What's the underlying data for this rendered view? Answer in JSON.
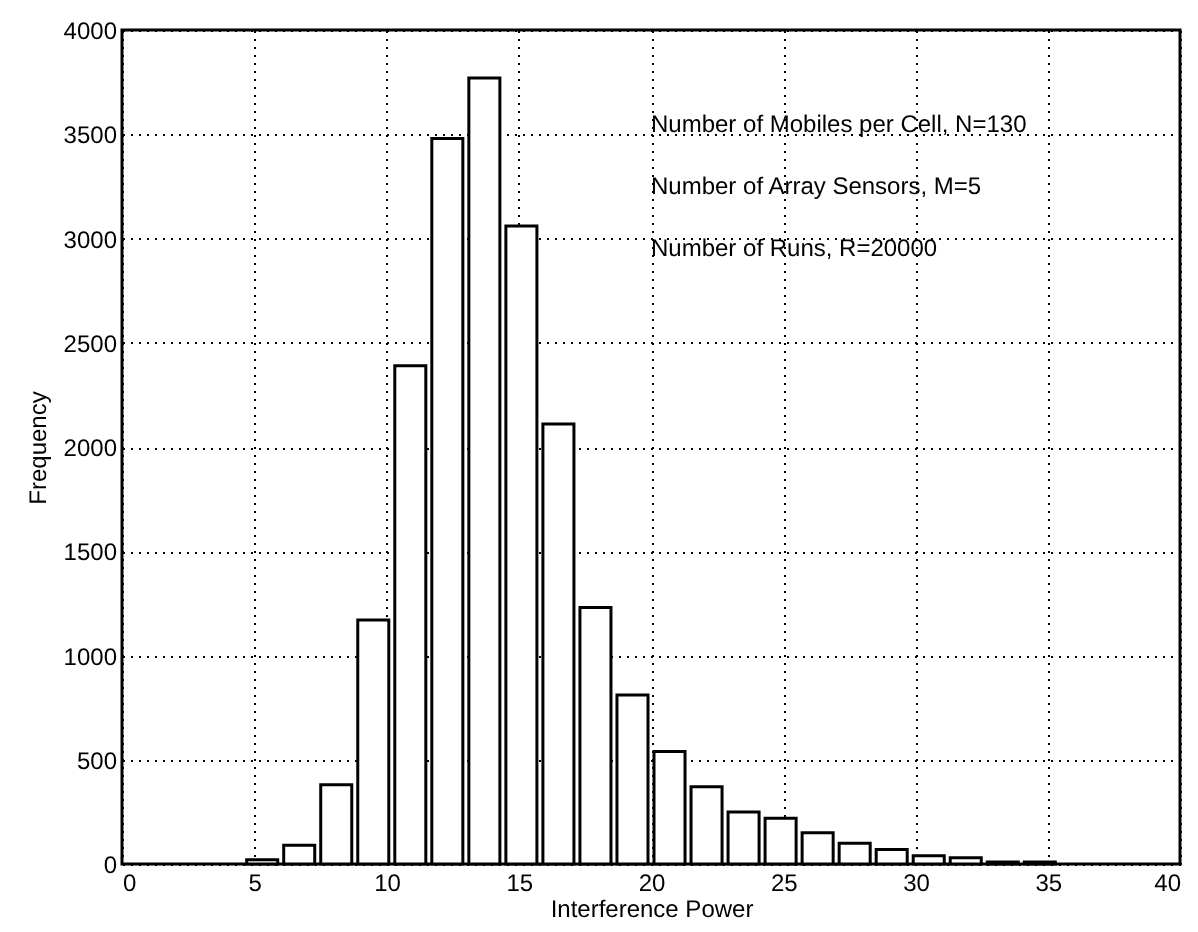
{
  "chart_data": {
    "type": "histogram",
    "bins": [
      4.6,
      6.0,
      7.4,
      8.8,
      10.2,
      11.6,
      13.0,
      14.4,
      15.8,
      17.2,
      18.6,
      20.0,
      21.4,
      22.8,
      24.2,
      25.6,
      27.0,
      28.4,
      29.8,
      31.2,
      32.6,
      34.0,
      35.4
    ],
    "values": [
      20,
      90,
      380,
      1170,
      2390,
      3480,
      3770,
      3060,
      2110,
      1230,
      810,
      540,
      370,
      250,
      220,
      150,
      100,
      70,
      40,
      30,
      10,
      10
    ],
    "color": "#ffffff",
    "xlabel": "Interference Power",
    "ylabel": "Frequency",
    "xlim": [
      0,
      40
    ],
    "ylim": [
      0,
      4000
    ],
    "xticks": [
      0,
      5,
      10,
      15,
      20,
      25,
      30,
      35,
      40
    ],
    "yticks": [
      0,
      500,
      1000,
      1500,
      2000,
      2500,
      3000,
      3500,
      4000
    ],
    "grid": true,
    "annotations": [
      "Number of Mobiles per Cell, N=130",
      "Number of Array Sensors, M=5",
      "Number of Runs, R=20000"
    ]
  }
}
